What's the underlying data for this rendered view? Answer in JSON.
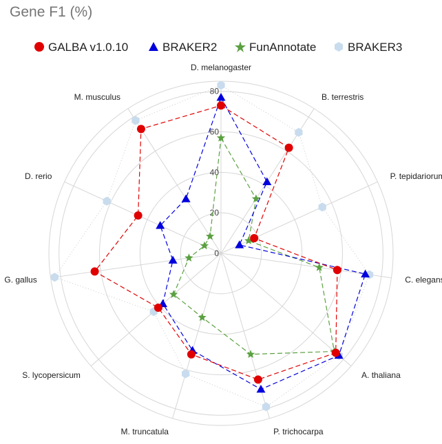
{
  "title": "Gene F1 (%)",
  "legend": [
    "GALBA v1.0.10",
    "BRAKER2",
    "FunAnnotate",
    "BRAKER3"
  ],
  "colors": {
    "GALBA v1.0.10": "#e00000",
    "BRAKER2": "#0000dd",
    "FunAnnotate": "#5aa040",
    "BRAKER3": "#c8dcee"
  },
  "chart_data": {
    "type": "radar",
    "title": "Gene F1 (%)",
    "r_range": [
      0,
      85
    ],
    "r_ticks": [
      "0",
      "20",
      "40",
      "60",
      "80"
    ],
    "r_tick_values": [
      0,
      20,
      40,
      60,
      80
    ],
    "grid": true,
    "legend_position": "top",
    "categories": [
      "D. melanogaster",
      "B. terrestris",
      "P. tepidariorum",
      "C. elegans",
      "A. thaliana",
      "P. trichocarpa",
      "M. truncatula",
      "S. lycopersicum",
      "G. gallus",
      "D. rerio",
      "M. musculus"
    ],
    "series": [
      {
        "name": "GALBA v1.0.10",
        "marker": "circle",
        "values": [
          73,
          62,
          18,
          58,
          75,
          65,
          52,
          41,
          63,
          45,
          73
        ]
      },
      {
        "name": "BRAKER2",
        "marker": "triangle",
        "values": [
          77,
          42,
          10,
          72,
          77,
          70,
          50,
          38,
          24,
          33,
          32
        ]
      },
      {
        "name": "FunAnnotate",
        "marker": "star",
        "values": [
          57,
          32,
          15,
          49,
          74,
          52,
          33,
          31,
          16,
          9,
          10
        ]
      },
      {
        "name": "BRAKER3",
        "marker": "hexagon",
        "values": [
          83,
          71,
          55,
          74,
          77,
          79,
          62,
          44,
          83,
          62,
          78
        ]
      }
    ]
  }
}
